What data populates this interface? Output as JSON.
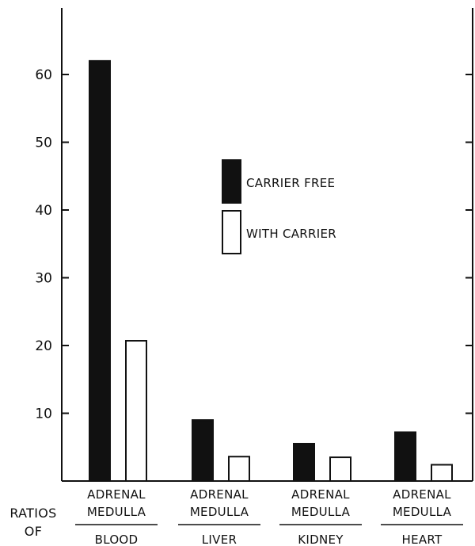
{
  "chart_data": {
    "type": "bar",
    "ylim": [
      0,
      70
    ],
    "yticks": [
      10,
      20,
      30,
      40,
      50,
      60
    ],
    "grid": false,
    "legend_position": "center",
    "row_label": [
      "RATIOS",
      "OF"
    ],
    "categories": [
      {
        "line1": "ADRENAL",
        "line2": "MEDULLA",
        "group": "BLOOD"
      },
      {
        "line1": "ADRENAL",
        "line2": "MEDULLA",
        "group": "LIVER"
      },
      {
        "line1": "ADRENAL",
        "line2": "MEDULLA",
        "group": "KIDNEY"
      },
      {
        "line1": "ADRENAL",
        "line2": "MEDULLA",
        "group": "HEART"
      }
    ],
    "series": [
      {
        "name": "CARRIER FREE",
        "fill": "#111111",
        "values": [
          62,
          9,
          5.5,
          7.2
        ]
      },
      {
        "name": "WITH CARRIER",
        "fill": "#ffffff",
        "values": [
          20.7,
          3.6,
          3.5,
          2.4
        ]
      }
    ]
  }
}
